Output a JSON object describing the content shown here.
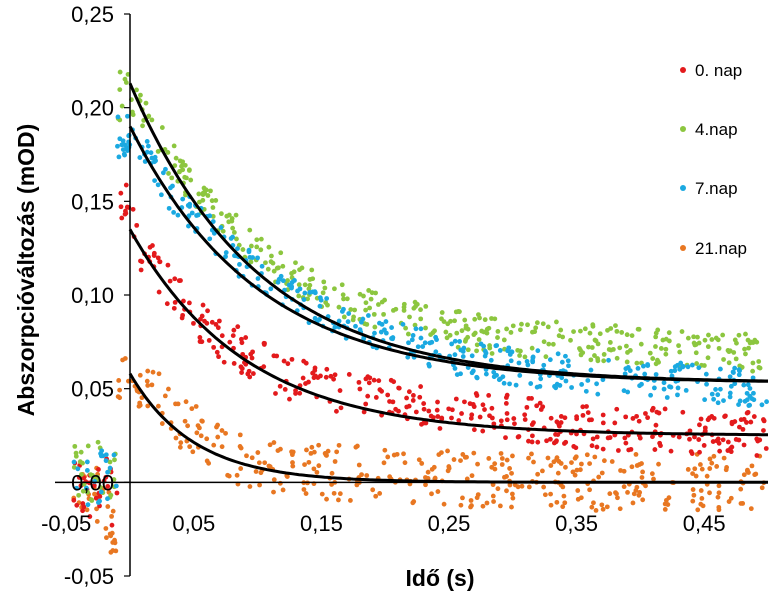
{
  "chart_data": {
    "type": "scatter",
    "title": "",
    "xlabel": "Idő (s)",
    "ylabel": "Abszorpcióváltozás (mOD)",
    "xlim": [
      -0.05,
      0.5
    ],
    "ylim": [
      -0.05,
      0.25
    ],
    "x_ticks": [
      -0.05,
      0.05,
      0.15,
      0.25,
      0.35,
      0.45
    ],
    "x_tick_labels": [
      "-0,05",
      "0,05",
      "0,15",
      "0,25",
      "0,35",
      "0,45"
    ],
    "y_ticks": [
      -0.05,
      0.0,
      0.05,
      0.1,
      0.15,
      0.2,
      0.25
    ],
    "y_tick_labels": [
      "-0,05",
      "0,00",
      "0,05",
      "0,10",
      "0,15",
      "0,20",
      "0,25"
    ],
    "legend_position": "right",
    "grid": false,
    "series": [
      {
        "name": "0. nap",
        "color": "#e31a1c",
        "points": [
          [
            -0.04,
            0.002
          ],
          [
            -0.03,
            -0.01
          ],
          [
            -0.02,
            0.008
          ],
          [
            -0.01,
            -0.02
          ],
          [
            0.001,
            0.15
          ],
          [
            0.01,
            0.12
          ],
          [
            0.02,
            0.115
          ],
          [
            0.03,
            0.105
          ],
          [
            0.05,
            0.09
          ],
          [
            0.075,
            0.075
          ],
          [
            0.1,
            0.065
          ],
          [
            0.125,
            0.055
          ],
          [
            0.15,
            0.05
          ],
          [
            0.2,
            0.045
          ],
          [
            0.25,
            0.04
          ],
          [
            0.3,
            0.035
          ],
          [
            0.35,
            0.03
          ],
          [
            0.4,
            0.028
          ],
          [
            0.45,
            0.027
          ],
          [
            0.5,
            0.026
          ]
        ],
        "fit": {
          "a": 0.11,
          "c": 0.025,
          "tau": 0.09
        }
      },
      {
        "name": "4.nap",
        "color": "#8cc63f",
        "points": [
          [
            -0.04,
            0.008
          ],
          [
            -0.03,
            0.005
          ],
          [
            -0.02,
            0.01
          ],
          [
            -0.01,
            0.0
          ],
          [
            0.005,
            0.205
          ],
          [
            0.02,
            0.185
          ],
          [
            0.04,
            0.165
          ],
          [
            0.06,
            0.148
          ],
          [
            0.08,
            0.135
          ],
          [
            0.1,
            0.122
          ],
          [
            0.125,
            0.11
          ],
          [
            0.15,
            0.102
          ],
          [
            0.2,
            0.09
          ],
          [
            0.25,
            0.082
          ],
          [
            0.3,
            0.077
          ],
          [
            0.35,
            0.075
          ],
          [
            0.4,
            0.073
          ],
          [
            0.45,
            0.07
          ],
          [
            0.5,
            0.069
          ]
        ],
        "fit": {
          "a": 0.16,
          "c": 0.053,
          "tau": 0.1
        }
      },
      {
        "name": "7.nap",
        "color": "#1ba9e1",
        "points": [
          [
            -0.04,
            0.0
          ],
          [
            -0.03,
            -0.005
          ],
          [
            -0.02,
            0.005
          ],
          [
            -0.01,
            0.01
          ],
          [
            0.005,
            0.185
          ],
          [
            0.02,
            0.165
          ],
          [
            0.04,
            0.148
          ],
          [
            0.06,
            0.135
          ],
          [
            0.08,
            0.122
          ],
          [
            0.1,
            0.11
          ],
          [
            0.125,
            0.1
          ],
          [
            0.15,
            0.09
          ],
          [
            0.2,
            0.078
          ],
          [
            0.25,
            0.068
          ],
          [
            0.3,
            0.062
          ],
          [
            0.35,
            0.058
          ],
          [
            0.4,
            0.055
          ],
          [
            0.45,
            0.053
          ],
          [
            0.5,
            0.05
          ]
        ],
        "fit": {
          "a": 0.137,
          "c": 0.053,
          "tau": 0.1
        }
      },
      {
        "name": "21.nap",
        "color": "#e87722",
        "points": [
          [
            -0.04,
            -0.01
          ],
          [
            -0.03,
            0.0
          ],
          [
            -0.02,
            -0.015
          ],
          [
            -0.01,
            -0.03
          ],
          [
            0.005,
            0.055
          ],
          [
            0.02,
            0.045
          ],
          [
            0.04,
            0.032
          ],
          [
            0.06,
            0.022
          ],
          [
            0.08,
            0.015
          ],
          [
            0.1,
            0.01
          ],
          [
            0.15,
            0.006
          ],
          [
            0.2,
            0.004
          ],
          [
            0.25,
            0.002
          ],
          [
            0.3,
            0.001
          ],
          [
            0.35,
            0.0
          ],
          [
            0.4,
            0.0
          ],
          [
            0.45,
            0.0
          ],
          [
            0.5,
            0.0
          ]
        ],
        "fit": {
          "a": 0.058,
          "c": 0.0,
          "tau": 0.05
        }
      }
    ]
  }
}
